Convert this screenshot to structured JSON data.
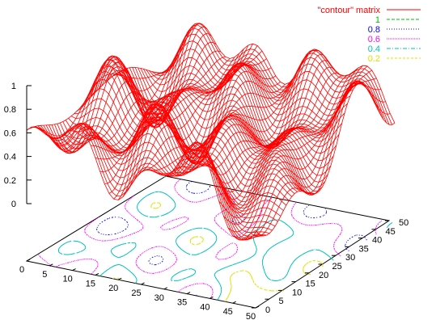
{
  "chart_data": {
    "type": "surface",
    "title": "",
    "zlim": [
      0,
      1
    ],
    "xlim": [
      0,
      50
    ],
    "ylim": [
      0,
      50
    ],
    "z_ticks": [
      "0",
      "0.2",
      "0.4",
      "0.6",
      "0.8",
      "1"
    ],
    "x_ticks": [
      "0",
      "5",
      "10",
      "15",
      "20",
      "25",
      "30",
      "35",
      "40",
      "45",
      "50"
    ],
    "y_ticks": [
      "0",
      "5",
      "10",
      "15",
      "20",
      "25",
      "30",
      "35",
      "40",
      "45",
      "50"
    ],
    "grid": false,
    "legend_position": "top-right",
    "series": [
      {
        "name": "\"contour\" matrix",
        "style": "mesh",
        "color": "#ff0000"
      }
    ],
    "contour_levels": [
      {
        "name": "1",
        "level": 1.0,
        "color": "#00c000",
        "dash": "4,2"
      },
      {
        "name": "0.8",
        "level": 0.8,
        "color": "#0000ff",
        "dash": "1,2"
      },
      {
        "name": "0.6",
        "level": 0.6,
        "color": "#ff00ff",
        "dash": "1,1"
      },
      {
        "name": "0.4",
        "level": 0.4,
        "color": "#00c0c0",
        "dash": "5,2,1,2"
      },
      {
        "name": "0.2",
        "level": 0.2,
        "color": "#e0e000",
        "dash": "3,2"
      }
    ]
  }
}
